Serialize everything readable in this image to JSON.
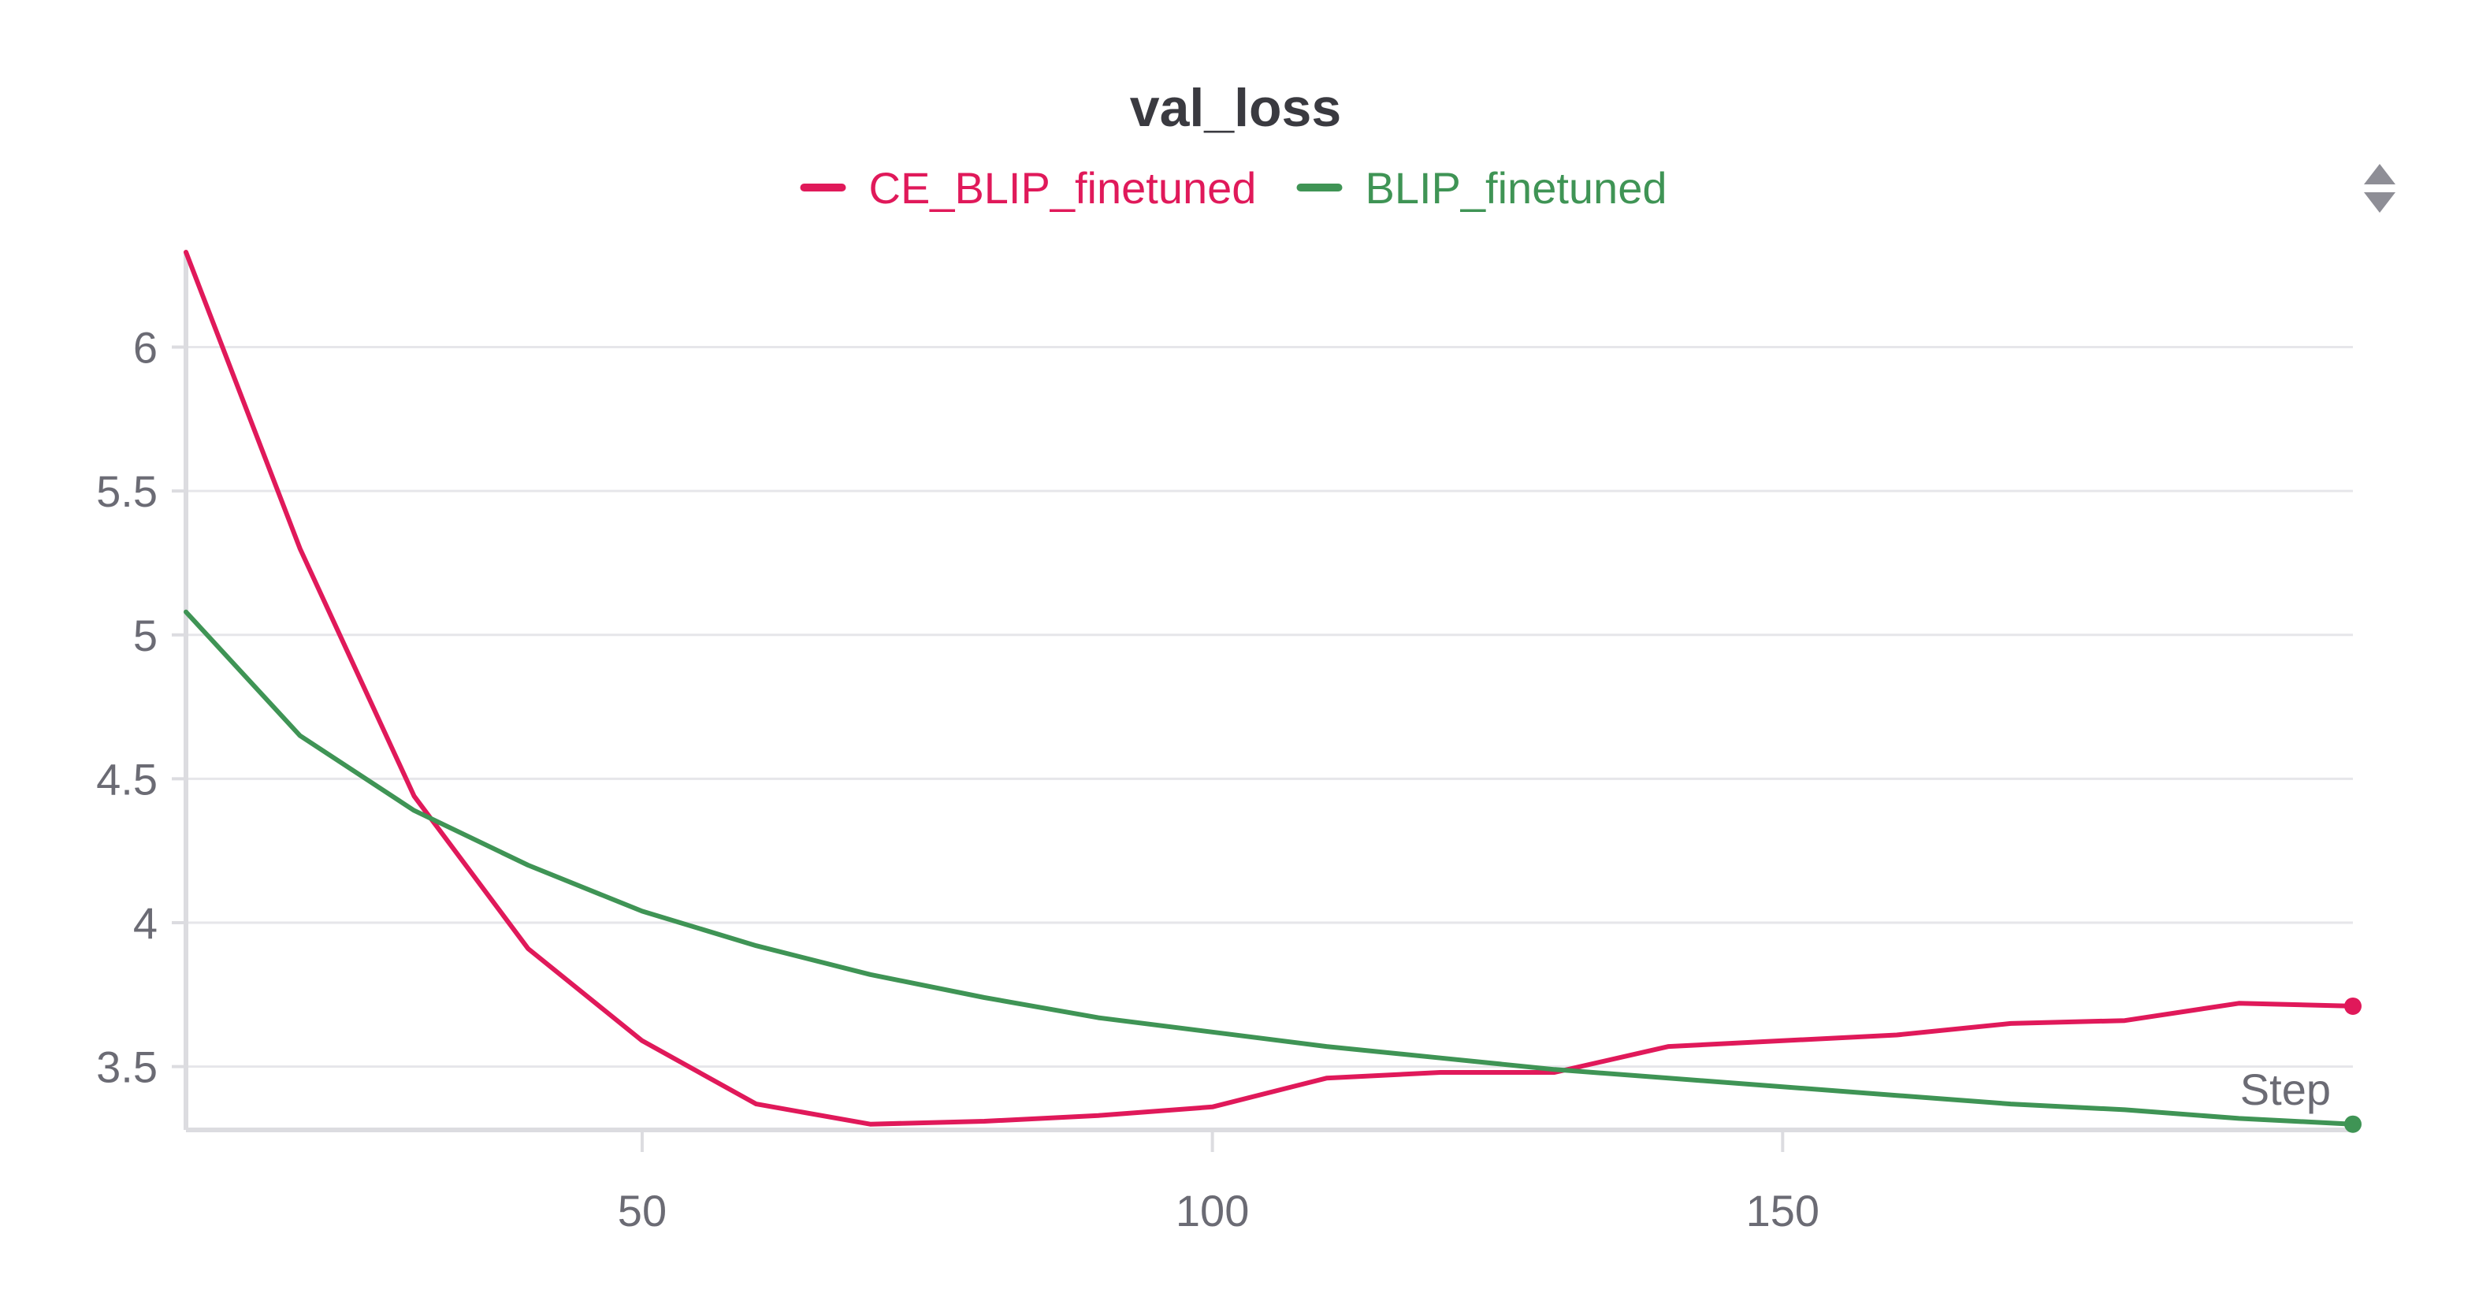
{
  "chart_data": {
    "type": "line",
    "title": "val_loss",
    "xlabel": "Step",
    "ylabel": "",
    "xlim": [
      10,
      200
    ],
    "ylim": [
      3.28,
      6.33
    ],
    "xticks": [
      50,
      100,
      150
    ],
    "yticks": [
      3.5,
      4,
      4.5,
      5,
      5.5,
      6
    ],
    "ytick_labels": [
      "3.5",
      "4",
      "4.5",
      "5",
      "5.5",
      "6"
    ],
    "xtick_labels": [
      "50",
      "100",
      "150"
    ],
    "grid": true,
    "legend_position": "top-center",
    "x": [
      10,
      20,
      30,
      40,
      50,
      60,
      70,
      80,
      90,
      100,
      110,
      120,
      130,
      140,
      150,
      160,
      170,
      180,
      190,
      200
    ],
    "series": [
      {
        "name": "CE_BLIP_finetuned",
        "color": "#e0195a",
        "values": [
          6.33,
          5.3,
          4.44,
          3.91,
          3.59,
          3.37,
          3.3,
          3.31,
          3.33,
          3.36,
          3.46,
          3.48,
          3.48,
          3.57,
          3.59,
          3.61,
          3.65,
          3.66,
          3.72,
          3.71
        ]
      },
      {
        "name": "BLIP_finetuned",
        "color": "#3f9455",
        "values": [
          5.08,
          4.65,
          4.39,
          4.2,
          4.04,
          3.92,
          3.82,
          3.74,
          3.67,
          3.62,
          3.57,
          3.53,
          3.49,
          3.46,
          3.43,
          3.4,
          3.37,
          3.35,
          3.32,
          3.3
        ]
      }
    ]
  },
  "icons": {
    "legend_toggle": "chevron-up-down-icon"
  }
}
